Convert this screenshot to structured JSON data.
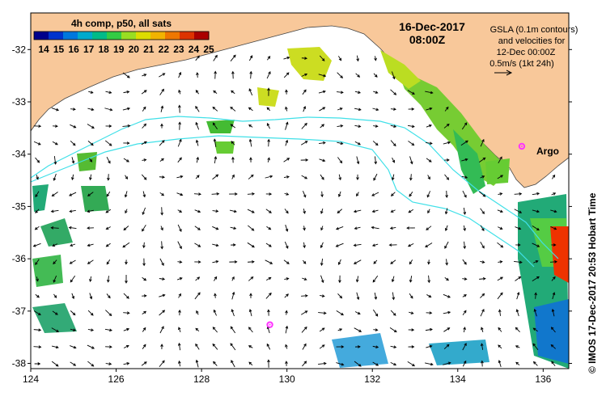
{
  "colorbar": {
    "title": "4h comp, p50, all sats",
    "ticks": [
      "14",
      "15",
      "16",
      "17",
      "18",
      "19",
      "20",
      "21",
      "22",
      "23",
      "24",
      "25"
    ],
    "colors": [
      "#00008b",
      "#0033cc",
      "#0077dd",
      "#00aacc",
      "#00bb88",
      "#33cc44",
      "#99dd22",
      "#dddd00",
      "#f2b300",
      "#ee7700",
      "#dd3300",
      "#aa0000"
    ]
  },
  "timestamp": {
    "date": "16-Dec-2017",
    "time": "08:00Z"
  },
  "legend": {
    "line1": "GSLA (0.1m contours)",
    "line2": "and velocities for",
    "line3": "12-Dec 00:00Z",
    "line4": "0.5m/s (1kt 24h)"
  },
  "argo_label": "Argo",
  "credit": "© IMOS 17-Dec-2017 20:53 Hobart Time",
  "axes": {
    "x_ticks": [
      "124",
      "126",
      "128",
      "130",
      "132",
      "134",
      "136"
    ],
    "y_ticks": [
      "-32",
      "-33",
      "-34",
      "-35",
      "-36",
      "-37",
      "-38"
    ],
    "xlim": [
      124,
      136.6
    ],
    "ylim": [
      -38.1,
      -31.3
    ]
  },
  "markers": [
    {
      "name": "argo-float-1",
      "lon": 135.5,
      "lat": -33.85,
      "labeled": true
    },
    {
      "name": "argo-float-2",
      "lon": 129.6,
      "lat": -37.26,
      "labeled": false
    }
  ],
  "colors": {
    "land": "#f8c89a",
    "ocean": "#ffffff",
    "contour": "#40e0e8",
    "marker": "#ff33ff"
  }
}
